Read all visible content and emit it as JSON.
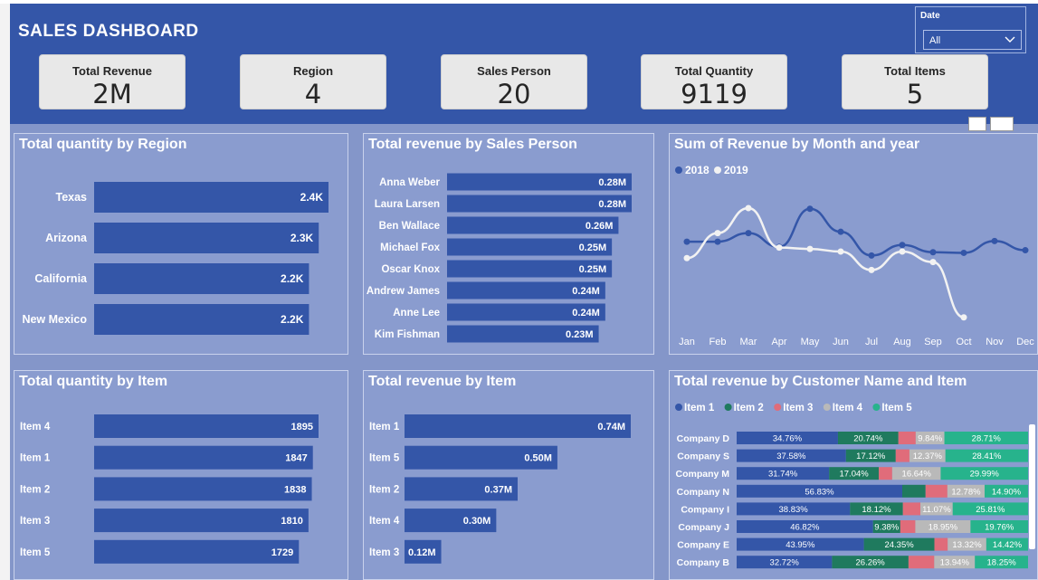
{
  "header": {
    "title": "SALES DASHBOARD",
    "date_label": "Date",
    "date_value": "All"
  },
  "kpis": [
    {
      "label": "Total Revenue",
      "value": "2M"
    },
    {
      "label": "Region",
      "value": "4"
    },
    {
      "label": "Sales Person",
      "value": "20"
    },
    {
      "label": "Total Quantity",
      "value": "9119"
    },
    {
      "label": "Total Items",
      "value": "5"
    }
  ],
  "colors": {
    "header": "#3456a8",
    "background": "#8496c9",
    "bar": "#3456a8",
    "line2018": "#3456a8",
    "line2019": "#f2f2f2"
  },
  "chart_data": [
    {
      "id": "qty-region",
      "type": "bar",
      "orientation": "horizontal",
      "title": "Total quantity by Region",
      "categories": [
        "Texas",
        "Arizona",
        "California",
        "New Mexico"
      ],
      "values": [
        2400,
        2300,
        2200,
        2200
      ],
      "labels": [
        "2.4K",
        "2.3K",
        "2.2K",
        "2.2K"
      ]
    },
    {
      "id": "rev-salesperson",
      "type": "bar",
      "orientation": "horizontal",
      "title": "Total revenue by Sales Person",
      "categories": [
        "Anna Weber",
        "Laura Larsen",
        "Ben Wallace",
        "Michael Fox",
        "Oscar Knox",
        "Andrew James",
        "Anne Lee",
        "Kim Fishman"
      ],
      "values": [
        0.28,
        0.28,
        0.26,
        0.25,
        0.25,
        0.24,
        0.24,
        0.23
      ],
      "labels": [
        "0.28M",
        "0.28M",
        "0.26M",
        "0.25M",
        "0.25M",
        "0.24M",
        "0.24M",
        "0.23M"
      ]
    },
    {
      "id": "rev-month",
      "type": "line",
      "title": "Sum of Revenue by Month and year",
      "x": [
        "Jan",
        "Feb",
        "Mar",
        "Apr",
        "May",
        "Jun",
        "Jul",
        "Aug",
        "Sep",
        "Oct",
        "Nov",
        "Dec"
      ],
      "series": [
        {
          "name": "2018",
          "values": [
            105,
            105,
            118,
            97,
            155,
            120,
            84,
            100,
            89,
            88,
            106,
            92
          ]
        },
        {
          "name": "2019",
          "values": [
            80,
            118,
            156,
            96,
            94,
            90,
            62,
            90,
            74,
            -10,
            null,
            null
          ]
        }
      ],
      "ylim": [
        -20,
        200
      ]
    },
    {
      "id": "qty-item",
      "type": "bar",
      "orientation": "horizontal",
      "title": "Total quantity by Item",
      "categories": [
        "Item 4",
        "Item 1",
        "Item 2",
        "Item 3",
        "Item 5"
      ],
      "values": [
        1895,
        1847,
        1838,
        1810,
        1729
      ],
      "labels": [
        "1895",
        "1847",
        "1838",
        "1810",
        "1729"
      ]
    },
    {
      "id": "rev-item",
      "type": "bar",
      "orientation": "horizontal",
      "title": "Total revenue by Item",
      "categories": [
        "Item 1",
        "Item 5",
        "Item 2",
        "Item 4",
        "Item 3"
      ],
      "values": [
        0.74,
        0.5,
        0.37,
        0.3,
        0.12
      ],
      "labels": [
        "0.74M",
        "0.50M",
        "0.37M",
        "0.30M",
        "0.12M"
      ]
    },
    {
      "id": "rev-customer",
      "type": "bar",
      "orientation": "horizontal",
      "stacked": true,
      "percent": true,
      "title": "Total revenue by Customer Name and Item",
      "legend": [
        "Item 1",
        "Item 2",
        "Item 3",
        "Item 4",
        "Item 5"
      ],
      "colors": [
        "#3456a8",
        "#1f7a5e",
        "#e06c7a",
        "#b9b9b9",
        "#27b38c"
      ],
      "categories": [
        "Company D",
        "Company S",
        "Company M",
        "Company N",
        "Company I",
        "Company J",
        "Company E",
        "Company B"
      ],
      "series": [
        {
          "name": "Item 1",
          "values": [
            34.76,
            37.58,
            31.74,
            56.83,
            38.83,
            46.82,
            43.95,
            32.72
          ],
          "labels": [
            "34.76%",
            "37.58%",
            "31.74%",
            "56.83%",
            "38.83%",
            "46.82%",
            "43.95%",
            "32.72%"
          ]
        },
        {
          "name": "Item 2",
          "values": [
            20.74,
            17.12,
            17.04,
            8.0,
            18.12,
            9.38,
            24.35,
            26.26
          ],
          "labels": [
            "20.74%",
            "17.12%",
            "17.04%",
            "",
            "18.12%",
            "9.38%",
            "24.35%",
            "26.26%"
          ]
        },
        {
          "name": "Item 3",
          "values": [
            5.95,
            4.72,
            4.61,
            7.49,
            5.99,
            5.15,
            4.6,
            8.84
          ],
          "labels": [
            "",
            "",
            "",
            "",
            "",
            "",
            "",
            ""
          ]
        },
        {
          "name": "Item 4",
          "values": [
            9.84,
            12.37,
            16.64,
            12.78,
            11.07,
            18.95,
            13.32,
            13.94
          ],
          "labels": [
            "9.84%",
            "12.37%",
            "16.64%",
            "12.78%",
            "11.07%",
            "18.95%",
            "13.32%",
            "13.94%"
          ]
        },
        {
          "name": "Item 5",
          "values": [
            28.71,
            28.41,
            29.99,
            14.9,
            25.81,
            19.76,
            14.42,
            18.25
          ],
          "labels": [
            "28.71%",
            "28.41%",
            "29.99%",
            "14.90%",
            "25.81%",
            "19.76%",
            "14.42%",
            "18.25%"
          ]
        }
      ]
    }
  ]
}
